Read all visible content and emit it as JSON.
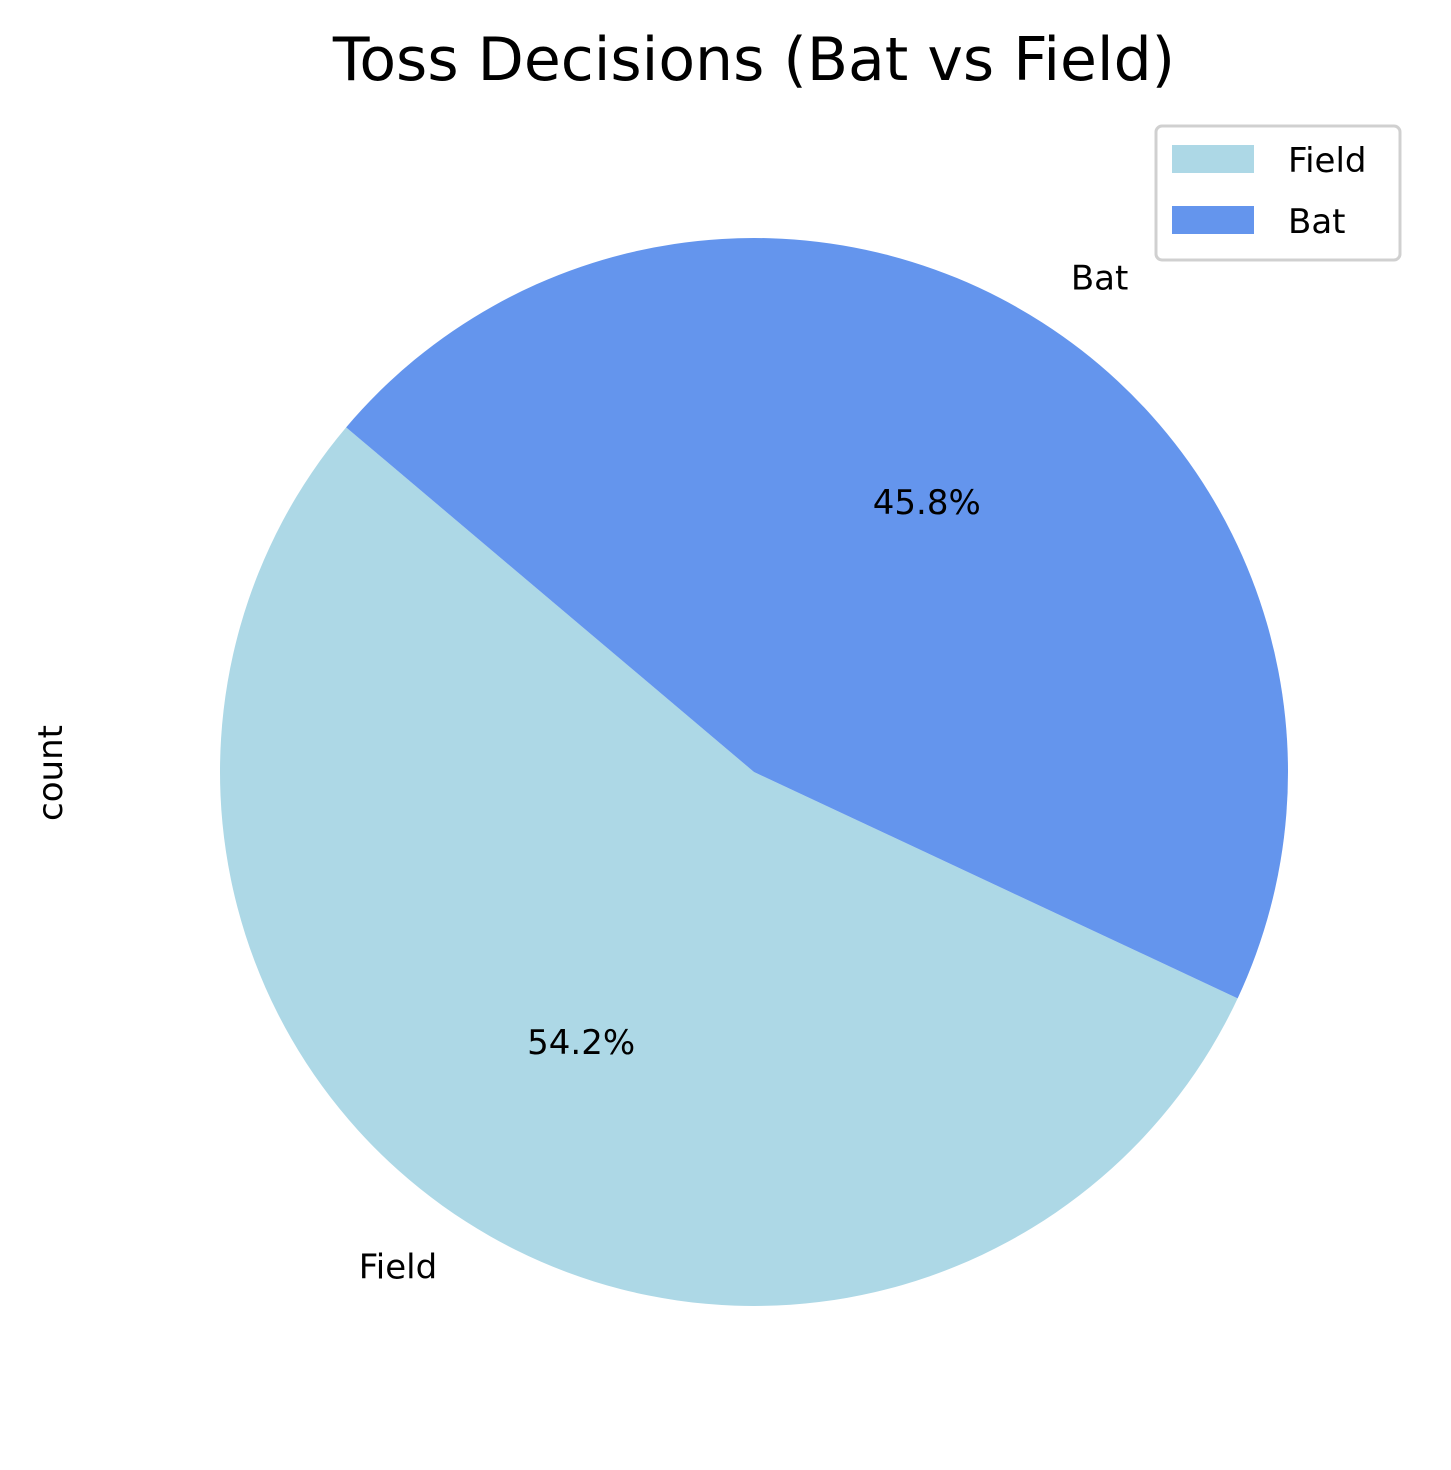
{
  "chart_data": {
    "type": "pie",
    "title": "Toss Decisions (Bat vs Field)",
    "ylabel": "count",
    "categories": [
      "Field",
      "Bat"
    ],
    "values": [
      54.2,
      45.8
    ],
    "percent_labels": [
      "54.2%",
      "45.8%"
    ],
    "colors": [
      "#add8e6",
      "#6495ed"
    ],
    "legend": {
      "placement": "top-right",
      "entries": [
        "Field",
        "Bat"
      ]
    }
  }
}
